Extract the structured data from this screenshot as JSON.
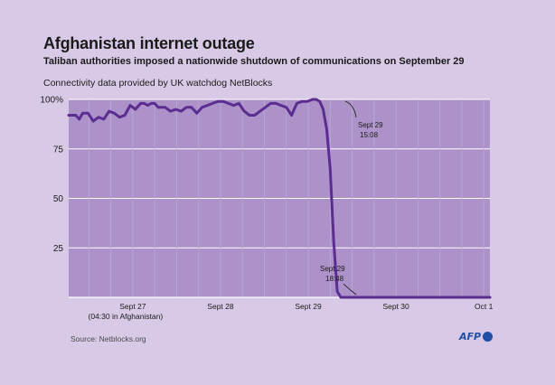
{
  "chart_data": {
    "type": "line",
    "title": "Afghanistan internet outage",
    "subtitle": "Taliban authorities imposed a nationwide shutdown of communications on September 29",
    "note": "Connectivity data provided by UK watchdog NetBlocks",
    "xlabel": "",
    "ylabel": "",
    "ylim": [
      0,
      100
    ],
    "y_ticks": [
      "25",
      "50",
      "75",
      "100%"
    ],
    "y_tick_values": [
      25,
      50,
      75,
      100
    ],
    "x_ticks": [
      {
        "t": 0.73,
        "label": "Sept 27",
        "sub": "(04:30 in Afghanistan)"
      },
      {
        "t": 1.73,
        "label": "Sept 28",
        "sub": ""
      },
      {
        "t": 2.73,
        "label": "Sept 29",
        "sub": ""
      },
      {
        "t": 3.73,
        "label": "Sept 30",
        "sub": ""
      },
      {
        "t": 4.73,
        "label": "Oct 1",
        "sub": ""
      }
    ],
    "xlim": [
      0,
      4.8
    ],
    "grid": true,
    "line_color": "#5b2d91",
    "background_color": "#d8cae6",
    "plot_color": "#ac92c8",
    "series": [
      {
        "name": "",
        "x": [
          0.0,
          0.08,
          0.12,
          0.16,
          0.22,
          0.28,
          0.34,
          0.4,
          0.46,
          0.52,
          0.58,
          0.64,
          0.7,
          0.76,
          0.82,
          0.86,
          0.9,
          0.94,
          0.98,
          1.02,
          1.06,
          1.1,
          1.16,
          1.22,
          1.28,
          1.34,
          1.4,
          1.46,
          1.52,
          1.58,
          1.64,
          1.7,
          1.76,
          1.82,
          1.88,
          1.94,
          2.0,
          2.06,
          2.12,
          2.18,
          2.24,
          2.3,
          2.36,
          2.42,
          2.48,
          2.54,
          2.6,
          2.66,
          2.72,
          2.78,
          2.82,
          2.86,
          2.9,
          2.94,
          2.98,
          3.02,
          3.06,
          3.1,
          3.14,
          3.18,
          3.22,
          3.26,
          3.28,
          3.3,
          3.32,
          3.34,
          3.36,
          3.4,
          3.5,
          3.6,
          3.7,
          3.8,
          3.9,
          4.0,
          4.2,
          4.4,
          4.6,
          4.8
        ],
        "y": [
          92,
          92,
          90,
          93,
          93,
          89,
          91,
          90,
          94,
          93,
          91,
          92,
          97,
          95,
          98,
          98,
          97,
          98,
          98,
          96,
          96,
          96,
          94,
          95,
          94,
          96,
          96,
          93,
          96,
          97,
          98,
          99,
          99,
          98,
          97,
          98,
          94,
          92,
          92,
          94,
          96,
          98,
          98,
          97,
          96,
          92,
          98,
          99,
          99,
          100,
          100,
          99,
          95,
          85,
          65,
          28,
          3,
          0,
          0,
          0,
          0,
          0,
          0,
          0,
          0,
          0,
          0,
          0,
          0,
          0,
          0,
          0,
          0,
          0,
          0,
          0,
          0,
          0
        ]
      }
    ],
    "annotations": [
      {
        "line1": "Sept 29",
        "line2": "15:08"
      },
      {
        "line1": "Sept 29",
        "line2": "18:48"
      }
    ],
    "source": "Source: Netblocks.org",
    "logo": "AFP"
  }
}
